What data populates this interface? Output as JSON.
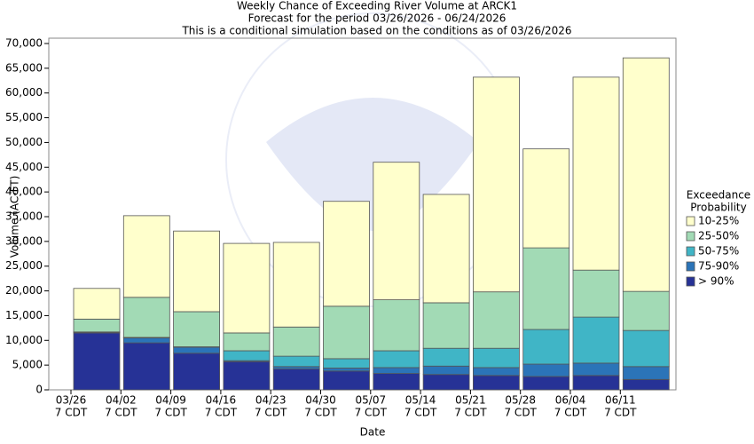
{
  "chart_data": {
    "type": "stacked_bar",
    "title": "Weekly Chance of Exceeding River Volume at ARCK1",
    "subtitle": [
      "Forecast for the period 03/26/2026 - 06/24/2026",
      "This is a conditional simulation based on the conditions as of 03/26/2026"
    ],
    "x_label": "Date",
    "y_label": "Volume (AC-FT)",
    "categories": [
      "03/26",
      "04/02",
      "04/09",
      "04/16",
      "04/23",
      "04/30",
      "05/07",
      "05/14",
      "05/21",
      "05/28",
      "06/04",
      "06/11"
    ],
    "category_sublabel": "7 CDT",
    "legend_title": [
      "Exceedance",
      "Probability"
    ],
    "series": [
      {
        "name": "> 90%",
        "color": "#263296",
        "values": [
          11500,
          9500,
          7400,
          5700,
          4200,
          3800,
          3300,
          3100,
          2900,
          2700,
          2900,
          2100
        ]
      },
      {
        "name": "75-90%",
        "color": "#2b74b8",
        "values": [
          150,
          1000,
          1200,
          200,
          500,
          600,
          1200,
          1700,
          1600,
          2500,
          2500,
          2600
        ]
      },
      {
        "name": "50-75%",
        "color": "#40b5c6",
        "values": [
          50,
          100,
          100,
          2000,
          2100,
          1900,
          3400,
          3600,
          3900,
          7000,
          9300,
          7300
        ]
      },
      {
        "name": "25-50%",
        "color": "#a2dab5",
        "values": [
          2600,
          8100,
          7100,
          3600,
          5900,
          10600,
          10300,
          9200,
          11400,
          16500,
          9500,
          7900
        ]
      },
      {
        "name": "10-25%",
        "color": "#ffffcc",
        "values": [
          6200,
          16500,
          16300,
          18100,
          17100,
          21200,
          27800,
          21900,
          43400,
          20000,
          39000,
          47200
        ]
      }
    ],
    "ylim": [
      0,
      70000
    ],
    "yticks": [
      0,
      {
        "value": 5000,
        "label": "5,000"
      },
      {
        "value": 10000,
        "label": "10,000"
      },
      {
        "value": 15000,
        "label": "15,000"
      },
      {
        "value": 20000,
        "label": "20,000"
      },
      {
        "value": 25000,
        "label": "25,000"
      },
      {
        "value": 30000,
        "label": "30,000"
      },
      {
        "value": 35000,
        "label": "35,000"
      },
      {
        "value": 40000,
        "label": "40,000"
      },
      {
        "value": 45000,
        "label": "45,000"
      },
      {
        "value": 50000,
        "label": "50,000"
      },
      {
        "value": 55000,
        "label": "55,000"
      },
      {
        "value": 60000,
        "label": "60,000"
      },
      {
        "value": 65000,
        "label": "65,000"
      },
      {
        "value": 70000,
        "label": "70,000"
      }
    ],
    "legend": "right"
  }
}
